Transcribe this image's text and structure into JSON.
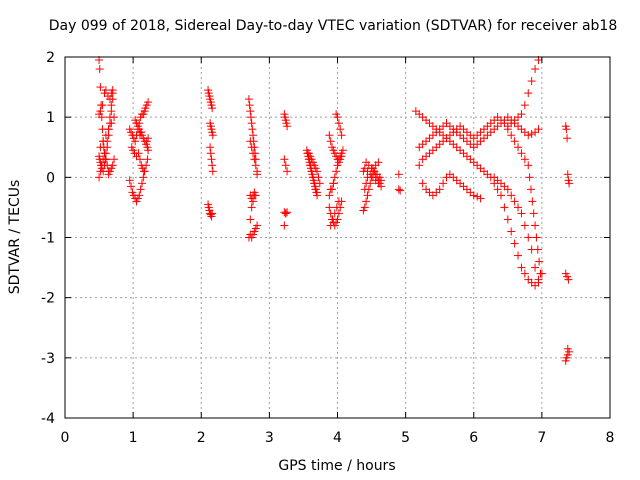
{
  "chart_data": {
    "type": "scatter",
    "title": "Day 099 of 2018, Sidereal Day-to-day VTEC variation (SDTVAR) for receiver ab18",
    "xlabel": "GPS time / hours",
    "ylabel": "SDTVAR / TECUs",
    "xlim": [
      0,
      8
    ],
    "ylim": [
      -4,
      2
    ],
    "x_ticks": [
      "0",
      "1",
      "2",
      "3",
      "4",
      "5",
      "6",
      "7",
      "8"
    ],
    "y_ticks": [
      "-4",
      "-3",
      "-2",
      "-1",
      "0",
      "1",
      "2"
    ],
    "grid": true,
    "marker": "plus",
    "color": "#ff0000",
    "series": [
      {
        "name": "SDTVAR",
        "x": [
          0.5,
          0.51,
          0.52,
          0.53,
          0.54,
          0.55,
          0.56,
          0.57,
          0.58,
          0.59,
          0.6,
          0.62,
          0.64,
          0.66,
          0.68,
          0.7,
          0.5,
          0.51,
          0.52,
          0.53,
          0.54,
          0.56,
          0.58,
          0.6,
          0.62,
          0.64,
          0.66,
          0.68,
          0.7,
          0.5,
          0.52,
          0.54,
          0.56,
          0.58,
          0.6,
          0.62,
          0.64,
          0.5,
          0.52,
          0.55,
          0.58,
          0.6,
          0.63,
          0.66,
          0.68,
          0.7,
          0.52,
          0.56,
          0.6,
          0.64,
          0.68,
          0.72,
          0.72,
          0.7,
          0.68,
          0.66,
          0.64,
          0.95,
          0.97,
          0.99,
          1.01,
          1.03,
          1.05,
          1.07,
          1.09,
          1.11,
          1.13,
          0.95,
          0.97,
          0.99,
          1.01,
          1.03,
          1.05,
          1.07,
          1.09,
          1.11,
          1.13,
          1.15,
          1.17,
          1.19,
          1.21,
          1.03,
          1.05,
          1.07,
          1.09,
          1.11,
          1.13,
          1.15,
          1.17,
          1.19,
          1.21,
          1.22,
          1.15,
          1.17,
          1.18,
          1.2,
          1.22,
          1.08,
          1.1,
          1.12,
          1.14,
          1.16,
          1.2,
          1.22,
          0.98,
          1.0,
          1.02,
          1.05,
          1.1,
          1.12,
          2.1,
          2.11,
          2.12,
          2.13,
          2.14,
          2.15,
          2.16,
          2.13,
          2.14,
          2.15,
          2.16,
          2.17,
          2.13,
          2.14,
          2.15,
          2.16,
          2.17,
          2.1,
          2.11,
          2.12,
          2.13,
          2.14,
          2.15,
          2.16,
          2.7,
          2.71,
          2.72,
          2.73,
          2.74,
          2.75,
          2.76,
          2.77,
          2.78,
          2.79,
          2.8,
          2.72,
          2.74,
          2.76,
          2.78,
          2.8,
          2.82,
          2.72,
          2.74,
          2.76,
          2.78,
          2.8,
          2.72,
          2.74,
          2.76,
          2.78,
          2.8,
          2.82,
          2.7,
          2.72,
          2.74,
          2.76,
          2.78,
          2.82,
          3.22,
          3.23,
          3.24,
          3.25,
          3.26,
          3.22,
          3.24,
          3.26,
          3.22,
          3.24,
          3.26,
          3.22,
          3.24,
          3.55,
          3.56,
          3.57,
          3.58,
          3.59,
          3.6,
          3.61,
          3.62,
          3.63,
          3.64,
          3.65,
          3.66,
          3.67,
          3.68,
          3.69,
          3.7,
          3.58,
          3.6,
          3.62,
          3.64,
          3.66,
          3.68,
          3.7,
          3.72,
          3.74,
          3.56,
          3.58,
          3.6,
          3.62,
          3.64,
          3.66,
          3.68,
          3.7,
          3.88,
          3.9,
          3.92,
          3.94,
          3.96,
          3.98,
          4.0,
          4.02,
          4.04,
          4.06,
          3.88,
          3.9,
          3.92,
          3.94,
          3.96,
          3.98,
          4.0,
          4.02,
          4.04,
          4.06,
          4.08,
          3.92,
          3.94,
          3.96,
          3.98,
          4.0,
          4.02,
          4.04,
          4.06,
          3.9,
          3.93,
          3.96,
          3.99,
          4.02,
          3.98,
          4.0,
          4.02,
          4.04,
          4.06,
          3.88,
          3.9,
          3.94,
          4.38,
          4.4,
          4.42,
          4.44,
          4.46,
          4.48,
          4.5,
          4.52,
          4.54,
          4.56,
          4.58,
          4.6,
          4.62,
          4.64,
          4.4,
          4.44,
          4.48,
          4.52,
          4.56,
          4.6,
          4.64,
          4.42,
          4.46,
          4.5,
          4.54,
          4.58,
          4.62,
          4.4,
          4.42,
          4.44,
          4.38,
          4.52,
          4.56,
          4.6,
          4.9,
          4.9,
          4.92,
          5.15,
          5.2,
          5.25,
          5.3,
          5.35,
          5.4,
          5.45,
          5.5,
          5.55,
          5.6,
          5.65,
          5.7,
          5.75,
          5.8,
          5.85,
          5.9,
          5.95,
          6.0,
          6.05,
          6.1,
          6.15,
          6.2,
          6.25,
          6.3,
          6.35,
          6.4,
          6.45,
          6.5,
          6.55,
          6.6,
          6.65,
          6.7,
          6.75,
          6.8,
          6.85,
          6.9,
          6.95,
          5.2,
          5.25,
          5.3,
          5.35,
          5.4,
          5.45,
          5.5,
          5.55,
          5.6,
          5.65,
          5.7,
          5.75,
          5.8,
          5.85,
          5.9,
          5.95,
          6.0,
          6.05,
          6.1,
          6.15,
          6.2,
          6.25,
          6.3,
          6.35,
          6.4,
          6.45,
          6.5,
          6.55,
          6.6,
          6.65,
          6.7,
          6.75,
          6.8,
          6.85,
          6.9,
          6.95,
          5.25,
          5.3,
          5.35,
          5.4,
          5.45,
          5.5,
          5.55,
          5.6,
          5.65,
          5.7,
          5.75,
          5.8,
          5.85,
          5.9,
          5.95,
          6.0,
          6.05,
          6.1,
          5.2,
          5.25,
          5.3,
          5.35,
          5.4,
          5.45,
          5.5,
          5.55,
          5.6,
          5.65,
          5.7,
          5.75,
          5.8,
          5.85,
          5.9,
          5.95,
          6.0,
          6.05,
          6.1,
          6.15,
          6.2,
          6.25,
          6.3,
          6.35,
          6.4,
          6.45,
          6.5,
          6.55,
          6.6,
          6.65,
          6.7,
          6.75,
          6.8,
          6.85,
          6.9,
          6.95,
          6.5,
          6.55,
          6.6,
          6.65,
          6.7,
          6.75,
          6.8,
          6.82,
          6.84,
          6.86,
          6.88,
          6.9,
          6.92,
          6.94,
          6.96,
          6.98,
          6.3,
          6.35,
          6.4,
          6.45,
          6.5,
          6.55,
          6.6,
          6.65,
          6.7,
          6.75,
          6.8,
          6.85,
          6.9,
          6.95,
          7.0,
          7.35,
          7.36,
          7.37,
          7.38,
          7.39,
          7.4,
          7.35,
          7.37,
          7.39,
          7.38,
          7.4,
          7.36,
          7.38,
          7.35
        ],
        "y": [
          1.95,
          1.8,
          1.5,
          1.2,
          1.0,
          0.8,
          0.6,
          0.5,
          0.4,
          0.3,
          0.4,
          0.6,
          0.8,
          1.0,
          1.2,
          1.4,
          0.35,
          0.3,
          0.25,
          0.2,
          0.15,
          0.1,
          0.2,
          0.3,
          0.5,
          0.7,
          0.9,
          1.1,
          1.3,
          0.0,
          0.1,
          0.2,
          0.3,
          0.4,
          0.3,
          0.2,
          0.1,
          1.05,
          1.1,
          1.2,
          1.4,
          1.45,
          1.35,
          1.3,
          1.4,
          1.45,
          0.5,
          0.6,
          0.7,
          0.8,
          0.9,
          1.0,
          0.3,
          0.2,
          0.15,
          0.1,
          0.05,
          0.8,
          0.75,
          0.7,
          0.65,
          0.6,
          0.7,
          0.8,
          0.9,
          1.0,
          1.05,
          -0.05,
          -0.15,
          -0.25,
          -0.3,
          -0.35,
          -0.4,
          -0.35,
          -0.3,
          -0.2,
          -0.1,
          0.0,
          0.1,
          0.2,
          0.3,
          0.95,
          0.9,
          0.85,
          0.8,
          0.75,
          0.7,
          0.65,
          0.6,
          0.55,
          0.5,
          0.45,
          1.05,
          1.1,
          1.15,
          1.2,
          1.25,
          0.4,
          0.3,
          0.2,
          0.15,
          0.1,
          0.6,
          0.65,
          0.5,
          0.45,
          0.4,
          0.35,
          0.7,
          0.75,
          1.45,
          1.4,
          1.35,
          1.3,
          1.25,
          1.2,
          1.15,
          0.9,
          0.85,
          0.8,
          0.75,
          0.7,
          0.5,
          0.4,
          0.3,
          0.2,
          0.1,
          -0.45,
          -0.5,
          -0.55,
          -0.6,
          -0.62,
          -0.65,
          -0.6,
          1.3,
          1.2,
          1.1,
          1.0,
          0.9,
          0.8,
          0.7,
          0.6,
          0.5,
          0.4,
          0.3,
          0.6,
          0.5,
          0.4,
          0.3,
          0.2,
          0.1,
          -0.3,
          -0.35,
          -0.3,
          -0.25,
          -0.3,
          -0.95,
          -1.0,
          -0.95,
          -0.9,
          -0.85,
          -0.8,
          -1.0,
          -0.7,
          -0.5,
          -0.4,
          -0.3,
          0.05,
          1.05,
          1.0,
          0.95,
          0.9,
          0.85,
          0.3,
          0.2,
          0.1,
          -0.58,
          -0.6,
          -0.58,
          -0.8,
          -0.6,
          0.45,
          0.4,
          0.35,
          0.3,
          0.25,
          0.2,
          0.15,
          0.1,
          0.05,
          0.0,
          -0.05,
          -0.1,
          -0.15,
          -0.2,
          -0.25,
          -0.3,
          0.4,
          0.35,
          0.3,
          0.25,
          0.2,
          0.15,
          0.1,
          0.0,
          -0.1,
          0.4,
          0.3,
          0.2,
          0.1,
          0.0,
          -0.1,
          -0.2,
          -0.25,
          -0.5,
          -0.6,
          -0.7,
          -0.75,
          -0.8,
          -0.75,
          -0.7,
          -0.6,
          -0.5,
          -0.4,
          0.7,
          0.6,
          0.5,
          0.45,
          0.4,
          0.35,
          0.3,
          0.3,
          0.35,
          0.4,
          0.45,
          -0.2,
          -0.1,
          0.0,
          0.1,
          0.2,
          0.25,
          0.3,
          0.35,
          -0.8,
          -0.7,
          -0.6,
          -0.5,
          -0.4,
          1.05,
          1.0,
          0.9,
          0.8,
          0.7,
          -0.3,
          -0.2,
          -0.1,
          -0.55,
          -0.5,
          -0.4,
          -0.3,
          -0.2,
          -0.1,
          0.0,
          0.05,
          0.1,
          0.05,
          0.0,
          -0.05,
          -0.1,
          -0.15,
          0.15,
          0.1,
          0.05,
          0.0,
          -0.05,
          -0.1,
          -0.05,
          0.25,
          0.2,
          0.15,
          0.1,
          0.05,
          0.0,
          -0.2,
          -0.1,
          0.0,
          0.1,
          0.15,
          0.2,
          0.25,
          0.05,
          -0.2,
          -0.22,
          1.1,
          1.05,
          1.0,
          0.95,
          0.9,
          0.85,
          0.8,
          0.75,
          0.7,
          0.65,
          0.6,
          0.55,
          0.5,
          0.45,
          0.4,
          0.35,
          0.3,
          0.25,
          0.2,
          0.15,
          0.1,
          0.05,
          0.0,
          -0.1,
          -0.2,
          -0.3,
          -0.5,
          -0.7,
          -0.9,
          -1.1,
          -1.3,
          -1.5,
          -1.6,
          -1.7,
          -1.75,
          -1.8,
          -1.75,
          0.2,
          0.3,
          0.35,
          0.4,
          0.45,
          0.5,
          0.55,
          0.6,
          0.65,
          0.7,
          0.75,
          0.8,
          0.85,
          0.8,
          0.75,
          0.7,
          0.65,
          0.7,
          0.75,
          0.8,
          0.85,
          0.9,
          0.95,
          1.0,
          0.95,
          0.9,
          0.85,
          0.9,
          0.95,
          1.0,
          1.05,
          1.2,
          1.4,
          1.6,
          1.8,
          1.95,
          -0.1,
          -0.2,
          -0.25,
          -0.3,
          -0.25,
          -0.2,
          -0.1,
          0.0,
          0.05,
          0.0,
          -0.05,
          -0.1,
          -0.15,
          -0.2,
          -0.25,
          -0.3,
          -0.32,
          -0.35,
          0.5,
          0.55,
          0.6,
          0.65,
          0.7,
          0.75,
          0.8,
          0.85,
          0.9,
          0.85,
          0.8,
          0.75,
          0.7,
          0.65,
          0.6,
          0.55,
          0.5,
          0.55,
          0.6,
          0.65,
          0.7,
          0.75,
          0.8,
          0.85,
          0.9,
          0.95,
          1.0,
          0.95,
          0.9,
          0.85,
          0.8,
          0.75,
          0.7,
          0.72,
          0.75,
          0.8,
          0.8,
          0.7,
          0.6,
          0.5,
          0.4,
          0.3,
          0.2,
          0.0,
          -0.2,
          -0.4,
          -0.6,
          -0.8,
          -1.0,
          -1.2,
          -1.4,
          -1.6,
          0.0,
          -0.05,
          -0.1,
          -0.15,
          -0.2,
          -0.3,
          -0.4,
          -0.5,
          -0.6,
          -0.8,
          -1.0,
          -1.2,
          -1.5,
          -1.7,
          -1.6,
          0.85,
          0.8,
          0.65,
          0.05,
          -0.05,
          -0.1,
          -1.6,
          -1.65,
          -1.7,
          -2.85,
          -2.9,
          -3.0,
          -2.95,
          -3.05
        ]
      }
    ]
  }
}
